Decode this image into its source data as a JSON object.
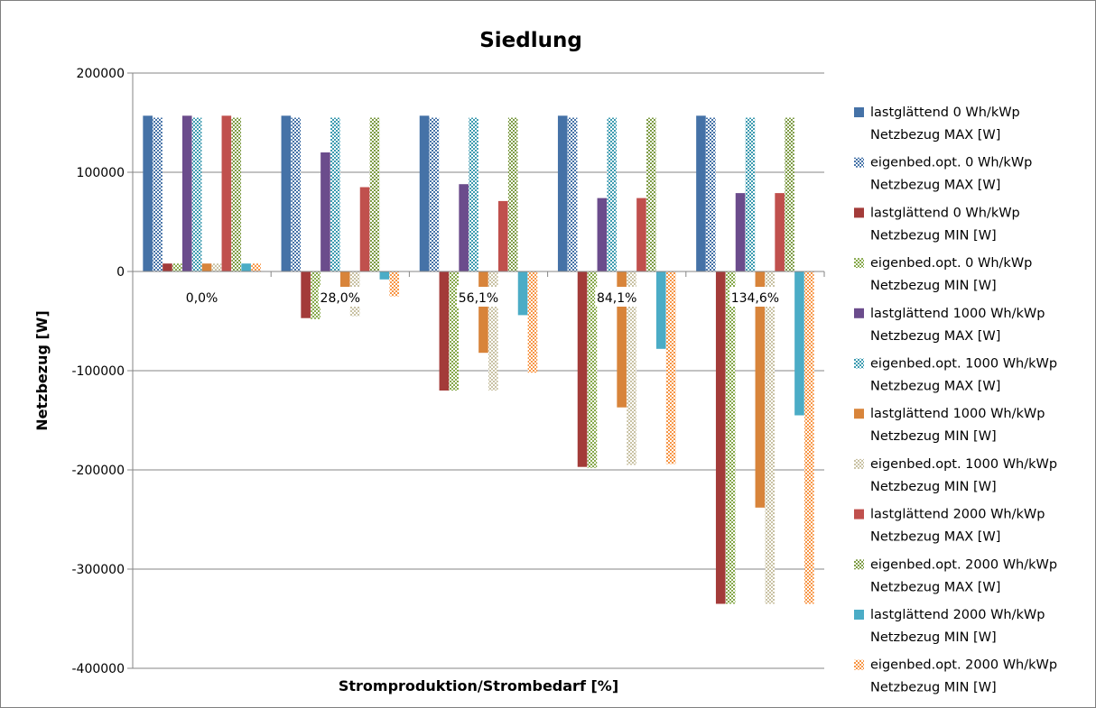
{
  "chart_data": {
    "type": "bar",
    "title": "Siedlung",
    "xlabel": "Stromproduktion/Strombedarf [%]",
    "ylabel": "Netzbezug [W]",
    "ylim": [
      -400000,
      200000
    ],
    "yticks": [
      200000,
      100000,
      0,
      -100000,
      -200000,
      -300000,
      -400000
    ],
    "grid": true,
    "legend_position": "right",
    "categories": [
      "0,0%",
      "28,0%",
      "56,1%",
      "84,1%",
      "134,6%"
    ],
    "series": [
      {
        "name": [
          "lastglättend  0 Wh/kWp",
          "Netzbezug MAX [W]"
        ],
        "values": [
          157000,
          157000,
          157000,
          157000,
          157000
        ],
        "color": "#4572A7",
        "pattern": "solid"
      },
      {
        "name": [
          "eigenbed.opt.  0 Wh/kWp",
          "Netzbezug MAX [W]"
        ],
        "values": [
          155000,
          155000,
          155000,
          155000,
          155000
        ],
        "color": "#4572A7",
        "pattern": "check"
      },
      {
        "name": [
          "lastglättend  0 Wh/kWp",
          "Netzbezug MIN [W]"
        ],
        "values": [
          8000,
          -47000,
          -120000,
          -197000,
          -335000
        ],
        "color": "#A33B39",
        "pattern": "solid"
      },
      {
        "name": [
          "eigenbed.opt.  0 Wh/kWp",
          "Netzbezug MIN [W]"
        ],
        "values": [
          8000,
          -48000,
          -120000,
          -198000,
          -335000
        ],
        "color": "#86A84A",
        "pattern": "check"
      },
      {
        "name": [
          "lastglättend 1000 Wh/kWp",
          "Netzbezug MAX [W]"
        ],
        "values": [
          157000,
          120000,
          88000,
          74000,
          79000
        ],
        "color": "#6B4C8C",
        "pattern": "solid"
      },
      {
        "name": [
          "eigenbed.opt. 1000 Wh/kWp",
          "Netzbezug MAX [W]"
        ],
        "values": [
          155000,
          155000,
          155000,
          155000,
          155000
        ],
        "color": "#3D9BB0",
        "pattern": "check"
      },
      {
        "name": [
          "lastglättend  1000 Wh/kWp",
          "Netzbezug MIN [W]"
        ],
        "values": [
          8000,
          -25000,
          -82000,
          -137000,
          -238000
        ],
        "color": "#D8843A",
        "pattern": "solid"
      },
      {
        "name": [
          "eigenbed.opt.  1000 Wh/kWp",
          "Netzbezug MIN [W]"
        ],
        "values": [
          8000,
          -45000,
          -120000,
          -195000,
          -335000
        ],
        "color": "#C9C2A4",
        "pattern": "check"
      },
      {
        "name": [
          "lastglättend  2000 Wh/kWp",
          "Netzbezug MAX [W]"
        ],
        "values": [
          157000,
          85000,
          71000,
          74000,
          79000
        ],
        "color": "#C0504D",
        "pattern": "solid"
      },
      {
        "name": [
          "eigenbed.opt.  2000 Wh/kWp",
          "Netzbezug MAX [W]"
        ],
        "values": [
          155000,
          155000,
          155000,
          155000,
          155000
        ],
        "color": "#7E9C45",
        "pattern": "check"
      },
      {
        "name": [
          "lastglättend  2000 Wh/kWp",
          "Netzbezug MIN [W]"
        ],
        "values": [
          8000,
          -8000,
          -44000,
          -78000,
          -145000
        ],
        "color": "#4BACC6",
        "pattern": "solid"
      },
      {
        "name": [
          "eigenbed.opt.  2000 Wh/kWp",
          "Netzbezug MIN [W]"
        ],
        "values": [
          8000,
          -25000,
          -102000,
          -194000,
          -335000
        ],
        "color": "#F79646",
        "pattern": "check"
      }
    ]
  }
}
